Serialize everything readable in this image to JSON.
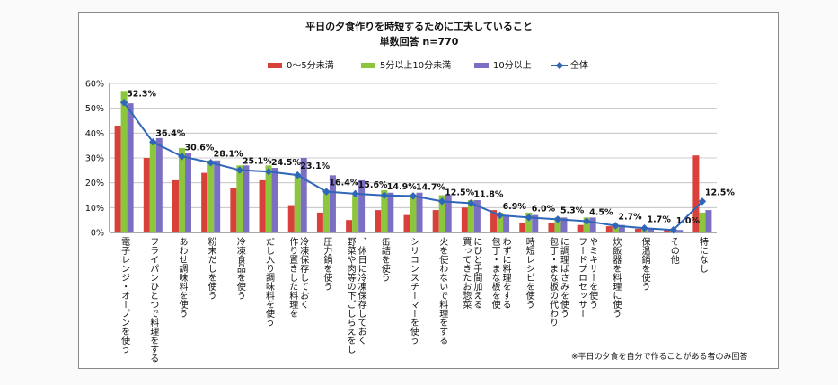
{
  "chart_data": {
    "type": "bar",
    "title": "平日の夕食作りを時短するために工夫していること",
    "subtitle": "単数回答 n=770",
    "note": "※平日の夕食を自分で作ることがある者のみ回答",
    "ylim": [
      0,
      60
    ],
    "yticks": [
      "0%",
      "10%",
      "20%",
      "30%",
      "40%",
      "50%",
      "60%"
    ],
    "categories": [
      "電子レンジ・オーブンを使う",
      "フライパンひとつで料理をする",
      "あわせ調味料を使う",
      "粉末だしを使う",
      "冷凍食品を使う",
      "だし入り調味料を使う",
      "作り置きした料理を冷凍保存しておく",
      "圧力鍋を使う",
      "野菜や肉等の下ごしらえをし、休日に冷凍保存しておく",
      "缶詰を使う",
      "シリコンスチーマーを使う",
      "火を使わないで料理をする",
      "買ってきたお惣菜にひと手間加える",
      "包丁・まな板を使わずに料理をする",
      "時短レシピを使う",
      "包丁・まな板の代わりに調理ばさみを使う",
      "フードプロセッサーやミキサーを使う",
      "炊飯器を料理に使う",
      "保温鍋を使う",
      "その他",
      "特になし"
    ],
    "series": [
      {
        "name": "0～5分未満",
        "color": "#d9403a",
        "values": [
          43,
          30,
          21,
          24,
          18,
          21,
          11,
          8,
          5,
          9,
          7,
          9,
          10,
          9,
          4,
          4,
          3,
          2.5,
          1.5,
          1,
          31
        ]
      },
      {
        "name": "5分以上10分未満",
        "color": "#8cc63f",
        "values": [
          57,
          36,
          34,
          29,
          27,
          27,
          23,
          17,
          15,
          17,
          15,
          15,
          13,
          8,
          8,
          6,
          6,
          3,
          2,
          1,
          8
        ]
      },
      {
        "name": "10分以上",
        "color": "#7b6fc4",
        "values": [
          52,
          38,
          32,
          29,
          27,
          26,
          30,
          23,
          21,
          16,
          16,
          15,
          13,
          7,
          7,
          6,
          6,
          3,
          1.5,
          1,
          9
        ]
      },
      {
        "name": "全体",
        "type": "line",
        "color": "#2f66b8",
        "values": [
          52.3,
          36.4,
          30.6,
          28.1,
          25.1,
          24.5,
          23.1,
          16.4,
          15.6,
          14.9,
          14.7,
          12.5,
          11.8,
          6.9,
          6.0,
          5.3,
          4.5,
          2.7,
          1.7,
          1.0,
          12.5
        ]
      }
    ],
    "line_labels": [
      "52.3%",
      "36.4%",
      "30.6%",
      "28.1%",
      "25.1%",
      "24.5%",
      "23.1%",
      "16.4%",
      "15.6%",
      "14.9%",
      "14.7%",
      "12.5%",
      "11.8%",
      "6.9%",
      "6.0%",
      "5.3%",
      "4.5%",
      "2.7%",
      "1.7%",
      "1.0%",
      "12.5%"
    ]
  }
}
